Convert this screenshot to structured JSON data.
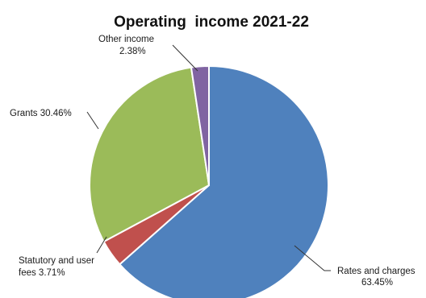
{
  "chart_data": {
    "type": "pie",
    "title": "Operating  income 2021-22",
    "slices": [
      {
        "name": "Rates and charges",
        "value": 63.45,
        "label_lines": [
          "Rates and charges",
          "63.45%"
        ],
        "color": "#4f81bd"
      },
      {
        "name": "Statutory and user fees",
        "value": 3.71,
        "label_lines": [
          "Statutory and user",
          "fees 3.71%"
        ],
        "color": "#c0504d"
      },
      {
        "name": "Grants",
        "value": 30.46,
        "label_lines": [
          "Grants  30.46%"
        ],
        "color": "#9bbb59"
      },
      {
        "name": "Other income",
        "value": 2.38,
        "label_lines": [
          "Other income",
          "2.38%"
        ],
        "color": "#8064a2"
      }
    ],
    "start_angle": "12 o'clock",
    "direction": "clockwise",
    "legend": "none"
  }
}
